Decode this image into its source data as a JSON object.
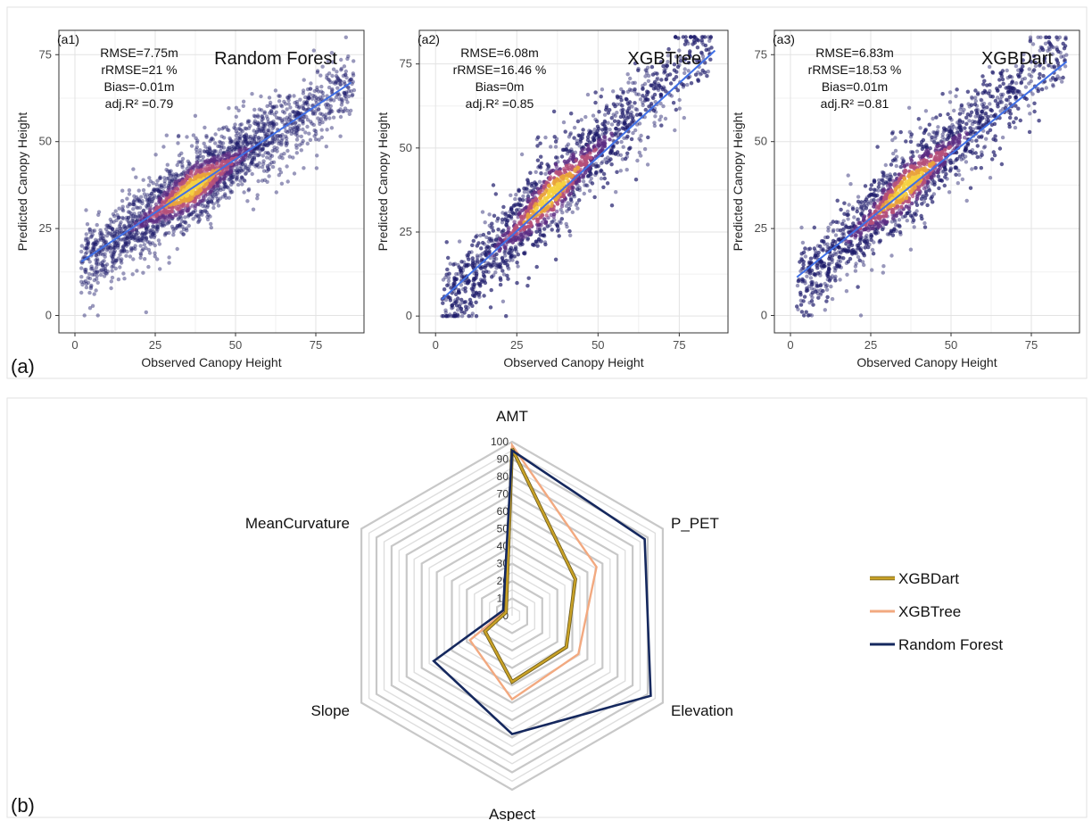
{
  "part_labels": {
    "a": "(a)",
    "b": "(b)"
  },
  "chart_data": [
    {
      "type": "scatter",
      "panel": "(a1)",
      "title": "Random Forest",
      "xlabel": "Observed Canopy Height",
      "ylabel": "Predicted Canopy Height",
      "xlim": [
        -5,
        90
      ],
      "ylim": [
        -5,
        82
      ],
      "xticks": [
        0,
        25,
        50,
        75
      ],
      "yticks": [
        0,
        25,
        50,
        75
      ],
      "grid": true,
      "stats": [
        "RMSE=7.75m",
        "rRMSE=21 %",
        "Bias=-0.01m",
        "adj.R² =0.79"
      ],
      "cloud": {
        "x_range": [
          2,
          87
        ],
        "intercept": 14.0,
        "slope": 0.62,
        "spread": 5.5,
        "points": 2400
      },
      "fit_line": [
        [
          2,
          15.5
        ],
        [
          86,
          67
        ]
      ],
      "density_colors": [
        "#1c1a6b",
        "#5b2d84",
        "#b5507a",
        "#e8a33c",
        "#f5d142"
      ],
      "line_color": "#3f6fe6"
    },
    {
      "type": "scatter",
      "panel": "(a2)",
      "title": "XGBTree",
      "xlabel": "Observed Canopy Height",
      "ylabel": "Predicted Canopy Height",
      "xlim": [
        -5,
        90
      ],
      "ylim": [
        -5,
        85
      ],
      "xticks": [
        0,
        25,
        50,
        75
      ],
      "yticks": [
        0,
        25,
        50,
        75
      ],
      "grid": true,
      "stats": [
        "RMSE=6.08m",
        "rRMSE=16.46 %",
        "Bias=0m",
        "adj.R² =0.85"
      ],
      "cloud": {
        "x_range": [
          2,
          85
        ],
        "intercept": 2.0,
        "slope": 0.96,
        "spread": 6.5,
        "points": 2400
      },
      "fit_line": [
        [
          2,
          5
        ],
        [
          86,
          79
        ]
      ],
      "density_colors": [
        "#1c1a6b",
        "#5b2d84",
        "#b5507a",
        "#e8a33c",
        "#f5d142"
      ],
      "line_color": "#3f6fe6"
    },
    {
      "type": "scatter",
      "panel": "(a3)",
      "title": "XGBDart",
      "xlabel": "Observed Canopy Height",
      "ylabel": "Predicted Canopy Height",
      "xlim": [
        -5,
        90
      ],
      "ylim": [
        -5,
        82
      ],
      "xticks": [
        0,
        25,
        50,
        75
      ],
      "yticks": [
        0,
        25,
        50,
        75
      ],
      "grid": true,
      "stats": [
        "RMSE=6.83m",
        "rRMSE=18.53 %",
        "Bias=0.01m",
        "adj.R² =0.81"
      ],
      "cloud": {
        "x_range": [
          2,
          86
        ],
        "intercept": 7.0,
        "slope": 0.83,
        "spread": 6.0,
        "points": 2400
      },
      "fit_line": [
        [
          2,
          11
        ],
        [
          86,
          73
        ]
      ],
      "density_colors": [
        "#1c1a6b",
        "#5b2d84",
        "#b5507a",
        "#e8a33c",
        "#f5d142"
      ],
      "line_color": "#3f6fe6"
    },
    {
      "type": "radar",
      "axes": [
        "AMT",
        "P_PET",
        "Elevation",
        "Aspect",
        "Slope",
        "MeanCurvature"
      ],
      "rlim": [
        0,
        100
      ],
      "rticks": [
        0,
        10,
        20,
        30,
        40,
        50,
        60,
        70,
        80,
        90,
        100
      ],
      "grid": true,
      "legend": "right",
      "series": [
        {
          "name": "XGBDart",
          "color": "#c9a227",
          "values": [
            96,
            42,
            36,
            38,
            18,
            4
          ]
        },
        {
          "name": "XGBTree",
          "color": "#f2a980",
          "values": [
            98,
            56,
            44,
            48,
            28,
            5
          ]
        },
        {
          "name": "Random Forest",
          "color": "#15285e",
          "values": [
            95,
            88,
            92,
            68,
            52,
            6
          ]
        }
      ]
    }
  ]
}
